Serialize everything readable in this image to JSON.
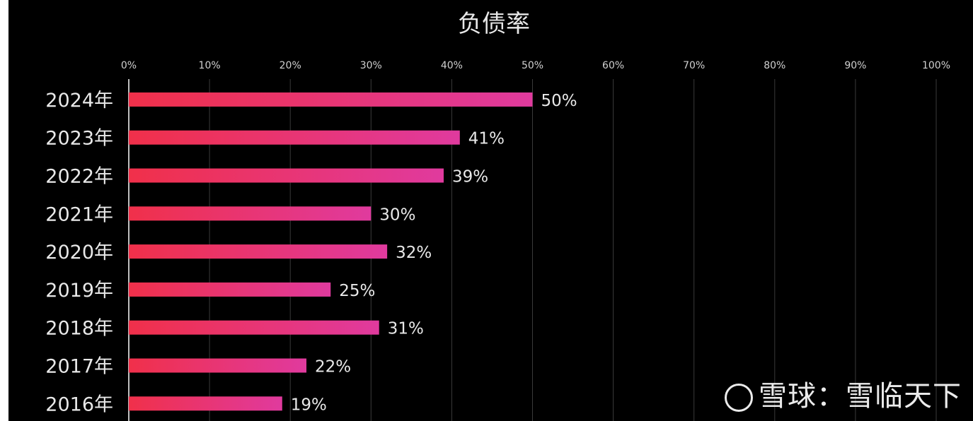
{
  "chart_data": {
    "type": "bar",
    "orientation": "horizontal",
    "title": "负债率",
    "categories": [
      "2024年",
      "2023年",
      "2022年",
      "2021年",
      "2020年",
      "2019年",
      "2018年",
      "2017年",
      "2016年"
    ],
    "values": [
      50,
      41,
      39,
      30,
      32,
      25,
      31,
      22,
      19
    ],
    "value_labels": [
      "50%",
      "41%",
      "39%",
      "30%",
      "32%",
      "25%",
      "31%",
      "22%",
      "19%"
    ],
    "xlim": [
      0,
      100
    ],
    "xticks": [
      0,
      10,
      20,
      30,
      40,
      50,
      60,
      70,
      80,
      90,
      100
    ],
    "xtick_labels": [
      "0%",
      "10%",
      "20%",
      "30%",
      "40%",
      "50%",
      "60%",
      "70%",
      "80%",
      "90%",
      "100%"
    ],
    "xaxis_position": "top",
    "grid": true,
    "colors": {
      "background": "#000000",
      "bar_start": "#f0304a",
      "bar_end": "#e03a9e",
      "text": "#e8e8e8",
      "grid": "#3a3a3a"
    }
  },
  "watermark": "雪球：雪临天下"
}
